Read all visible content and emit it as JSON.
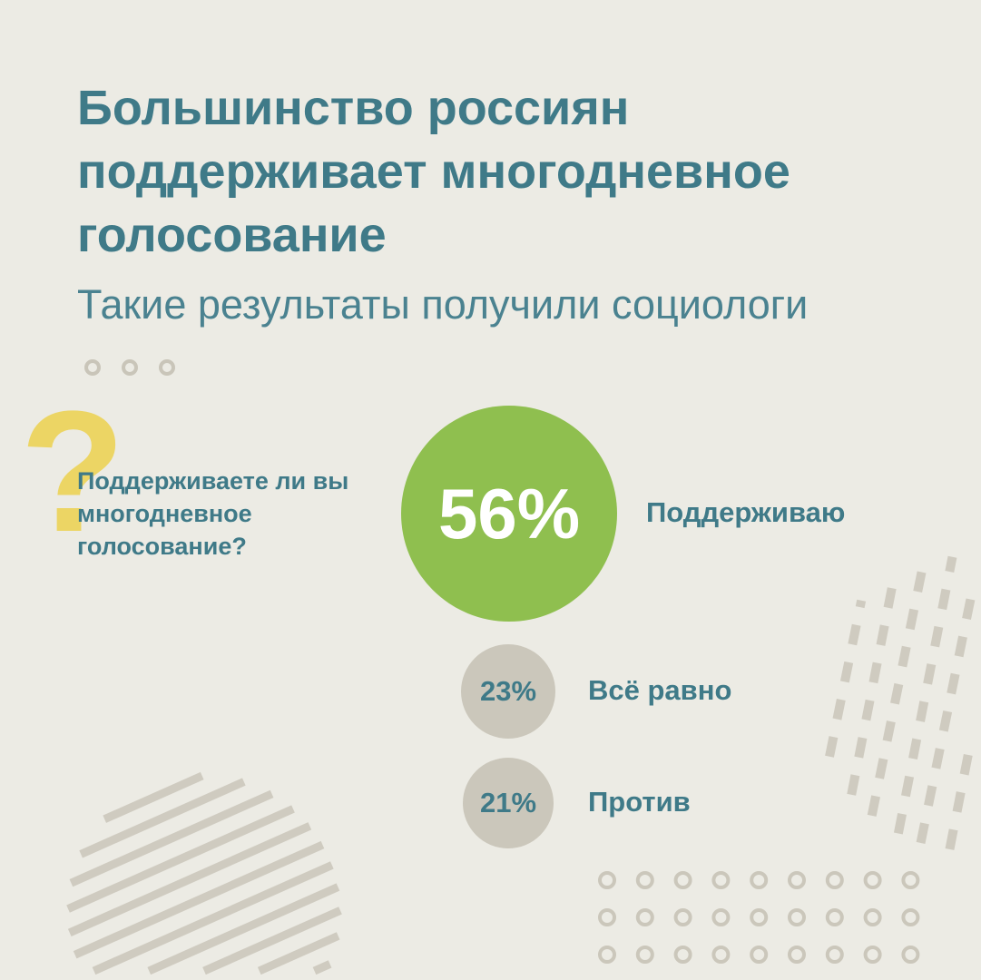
{
  "title": "Большинство россиян поддерживает многодневное голосование",
  "subtitle": "Такие результаты получили социологи",
  "question": "Поддерживаете ли вы многодневное голосование?",
  "colors": {
    "background": "#ecebe4",
    "text": "#3f7a88",
    "support": "#8fbf4f",
    "other": "#cbc7bb",
    "question_mark": "#ecd564"
  },
  "chart_data": {
    "type": "bubble",
    "categories": [
      "Поддерживаю",
      "Всё равно",
      "Против"
    ],
    "values": [
      56,
      23,
      21
    ],
    "value_labels": [
      "56%",
      "23%",
      "21%"
    ]
  }
}
